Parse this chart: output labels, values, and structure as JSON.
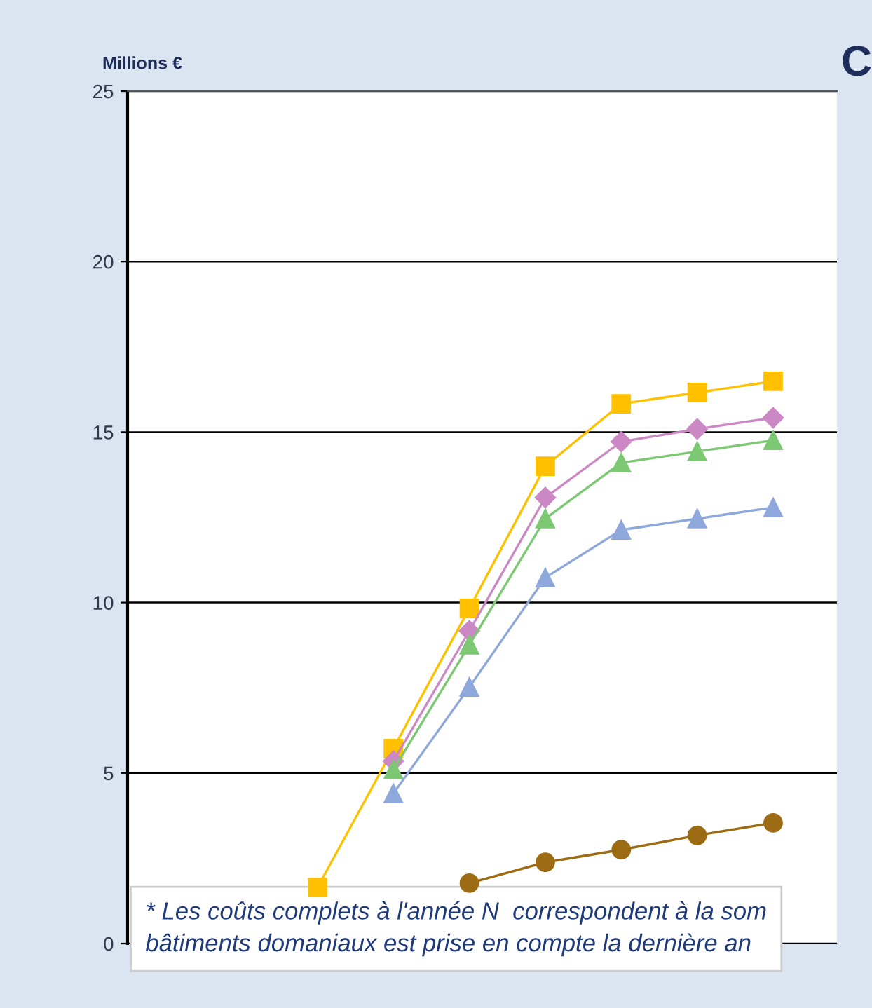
{
  "chart_data": {
    "type": "line",
    "title": "C",
    "ylabel": "Millions €",
    "categories": [
      null,
      null,
      null,
      null,
      null,
      null,
      null,
      null,
      null
    ],
    "series": [
      {
        "color": "#ffc000",
        "marker": "square",
        "values": [
          null,
          null,
          1.64,
          5.72,
          9.83,
          14.0,
          15.83,
          16.16,
          16.49
        ]
      },
      {
        "color": "#cc88c4",
        "marker": "diamond",
        "values": [
          null,
          null,
          null,
          5.35,
          9.17,
          13.08,
          14.72,
          15.09,
          15.42
        ]
      },
      {
        "color": "#7dc873",
        "marker": "triangle",
        "values": [
          null,
          null,
          null,
          5.1,
          8.76,
          12.46,
          14.1,
          14.43,
          14.76
        ]
      },
      {
        "color": "#8fa8dc",
        "marker": "triangle",
        "values": [
          null,
          null,
          null,
          4.4,
          7.52,
          10.73,
          12.13,
          12.46,
          12.79
        ]
      },
      {
        "color": "#9c6b14",
        "marker": "circle",
        "values": [
          null,
          null,
          null,
          null,
          1.77,
          2.38,
          2.75,
          3.17,
          3.54
        ]
      }
    ],
    "ylim": [
      0,
      25
    ],
    "yticks": [
      0,
      5,
      10,
      15,
      20,
      25
    ],
    "grid": "y",
    "tick_labels": "y",
    "legend": false,
    "annotations": [
      "* Les coûts complets à l'année N  correspondent à la som\nbâtiments domaniaux est prise en compte la dernière an"
    ]
  }
}
